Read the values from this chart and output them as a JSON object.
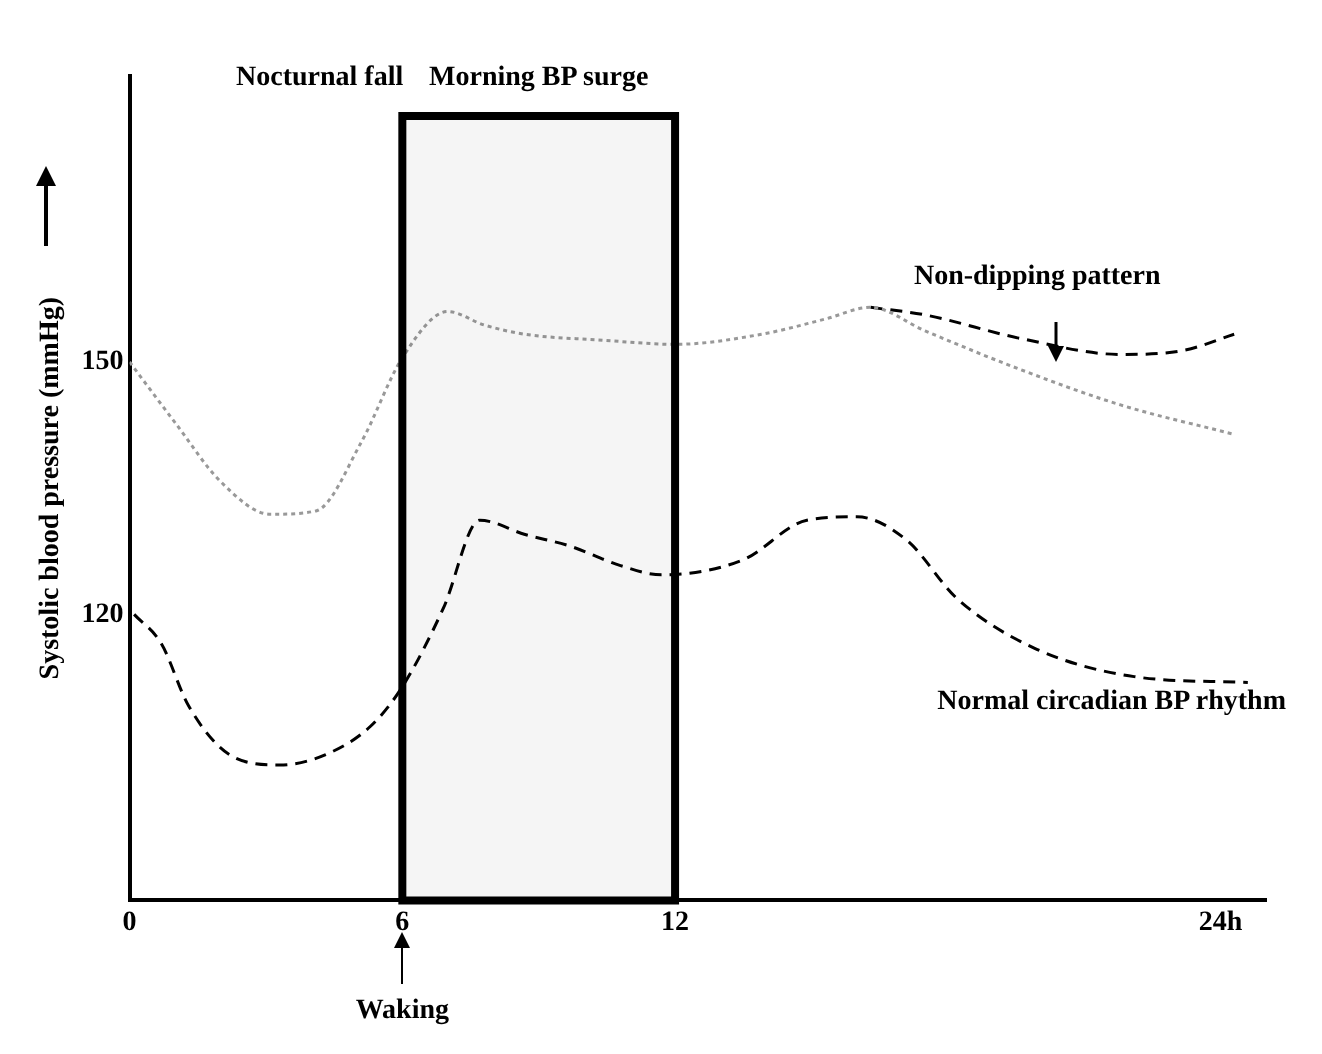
{
  "chart_data": {
    "type": "line",
    "ylabel": "Systolic blood pressure (mmHg)",
    "xlim": [
      0,
      25
    ],
    "xticks": [
      0,
      6,
      12,
      {
        "value": 24,
        "label": "24h"
      }
    ],
    "ylim": [
      86,
      184
    ],
    "yticks": [
      120,
      150
    ],
    "grid": false,
    "legend": false,
    "marker": "none",
    "bands": [
      {
        "axis": "x",
        "from": 6,
        "to": 12,
        "label": "Morning BP surge",
        "color": "#000000"
      }
    ],
    "annotations": [
      "Nocturnal fall",
      "Waking"
    ],
    "series": [
      {
        "color": "#999999",
        "line_style": "dotted",
        "x": [
          0,
          1,
          2,
          3.1,
          4.1,
          5.1,
          6,
          7,
          7.8,
          8.7,
          10.4,
          12,
          13.9,
          15.3,
          16.3,
          17.5,
          19.6,
          21.8,
          24.3
        ],
        "values": [
          150,
          142.8,
          135.8,
          131.9,
          132.3,
          140.5,
          150.5,
          156,
          154.4,
          153.3,
          152.6,
          152.1,
          153.3,
          155.1,
          156.5,
          153.7,
          149.1,
          144.9,
          141.4
        ]
      },
      {
        "name": "Non-dipping pattern",
        "color": "#000000",
        "line_style": "dashed",
        "x": [
          16.3,
          17.5,
          19.6,
          21.8,
          23.2,
          24.3
        ],
        "values": [
          156.5,
          155.6,
          152.8,
          150.9,
          151.4,
          153.3
        ]
      },
      {
        "name": "Normal circadian BP rhythm",
        "color": "#000000",
        "line_style": "dashed",
        "x": [
          0.1,
          0.7,
          1.3,
          2.3,
          3.3,
          4.3,
          5.3,
          6,
          6.9,
          7.7,
          8.7,
          9.7,
          10.8,
          11.7,
          13.5,
          14.9,
          16,
          17.1,
          18.2,
          19.9,
          22.1,
          24.6
        ],
        "values": [
          120,
          116.5,
          109.1,
          103,
          102.1,
          103.3,
          106.7,
          111.4,
          120.7,
          131.2,
          129.5,
          128.1,
          125.8,
          124.7,
          126.5,
          131.2,
          131.6,
          128.8,
          121.9,
          116,
          112.6,
          111.9
        ]
      }
    ]
  }
}
